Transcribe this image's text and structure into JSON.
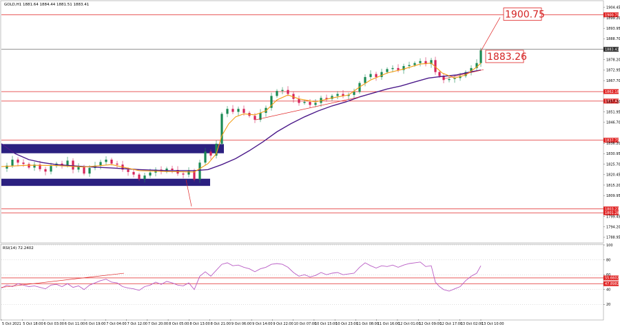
{
  "header": {
    "symbol_info": "GOLD,H1  1881.64 1884.44 1881.51 1883.41"
  },
  "indicator": {
    "label": "RSI(14) 72.2402"
  },
  "colors": {
    "bull": "#1a8a54",
    "bear": "#d6245a",
    "ema_fast": "#f39c12",
    "ema_slow": "#4b1a8a",
    "level_line": "#e02424",
    "box_fill": "#2b2080",
    "rsi_line": "#b85bc4",
    "price_tag_bg": "#2c2c2c"
  },
  "chart_data": [
    {
      "type": "candlestick",
      "title": "",
      "y_ticks": [
        "1904.45",
        "1899.20",
        "1893.95",
        "1888.70",
        "1878.20",
        "1872.95",
        "1867.70",
        "1857.20",
        "1851.95",
        "1846.70",
        "1836.20",
        "1830.95",
        "1825.70",
        "1820.45",
        "1815.20",
        "1809.95",
        "1799.45",
        "1794.20",
        "1788.95"
      ],
      "ylim": [
        1786.5,
        1907.5
      ],
      "x_ticks": [
        "5 Oct 2021",
        "5 Oct 18:00",
        "6 Oct 03:00",
        "6 Oct 11:00",
        "6 Oct 19:00",
        "7 Oct 04:00",
        "7 Oct 12:00",
        "7 Oct 20:00",
        "8 Oct 05:00",
        "8 Oct 13:00",
        "8 Oct 21:00",
        "9 Oct 06:00",
        "9 Oct 14:00",
        "9 Oct 22:00",
        "10 Oct 07:00",
        "10 Oct 15:00",
        "10 Oct 23:00",
        "11 Oct 08:00",
        "11 Oct 16:00",
        "12 Oct 01:00",
        "12 Oct 09:00",
        "12 Oct 17:00",
        "13 Oct 02:00",
        "13 Oct 10:00"
      ],
      "horizontal_levels": [
        {
          "value": 1900.75,
          "label": "1900.75"
        },
        {
          "value": 1862.18,
          "label": "1862.18"
        },
        {
          "value": 1857.42,
          "label": "1857.42"
        },
        {
          "value": 1837.75,
          "label": "1837.75"
        },
        {
          "value": 1803.23,
          "label": "1803.23"
        },
        {
          "value": 1801.28,
          "label": "1801.28"
        }
      ],
      "current_price": {
        "value": 1883.41,
        "label": "1883.41"
      },
      "callouts": [
        "1900.75",
        "1883.26"
      ],
      "zones": [
        [
          1831.2,
          1835.8
        ],
        [
          1814.8,
          1818.4
        ]
      ],
      "close_path": [
        [
          0,
          1823.5
        ],
        [
          8,
          1825.0
        ],
        [
          16,
          1828.0
        ],
        [
          24,
          1826.5
        ],
        [
          32,
          1825.8
        ],
        [
          40,
          1824.0
        ],
        [
          48,
          1825.5
        ],
        [
          56,
          1823.2
        ],
        [
          64,
          1822.0
        ],
        [
          72,
          1824.8
        ],
        [
          80,
          1826.0
        ],
        [
          88,
          1825.2
        ],
        [
          96,
          1827.5
        ],
        [
          104,
          1823.0
        ],
        [
          112,
          1824.5
        ],
        [
          120,
          1821.0
        ],
        [
          128,
          1823.8
        ],
        [
          136,
          1825.0
        ],
        [
          144,
          1826.8
        ],
        [
          152,
          1828.0
        ],
        [
          160,
          1826.0
        ],
        [
          168,
          1825.5
        ],
        [
          176,
          1823.0
        ],
        [
          184,
          1821.8
        ],
        [
          192,
          1820.5
        ],
        [
          200,
          1818.2
        ],
        [
          208,
          1820.0
        ],
        [
          216,
          1821.5
        ],
        [
          224,
          1823.0
        ],
        [
          232,
          1822.0
        ],
        [
          240,
          1823.5
        ],
        [
          248,
          1822.8
        ],
        [
          256,
          1821.0
        ],
        [
          264,
          1820.5
        ],
        [
          272,
          1822.5
        ],
        [
          280,
          1818.0
        ],
        [
          288,
          1826.5
        ],
        [
          296,
          1832.0
        ],
        [
          304,
          1830.0
        ],
        [
          312,
          1836.0
        ],
        [
          320,
          1851.0
        ],
        [
          328,
          1853.5
        ],
        [
          336,
          1852.0
        ],
        [
          344,
          1853.5
        ],
        [
          352,
          1851.5
        ],
        [
          360,
          1850.0
        ],
        [
          368,
          1848.0
        ],
        [
          376,
          1851.5
        ],
        [
          384,
          1854.0
        ],
        [
          392,
          1860.0
        ],
        [
          400,
          1862.5
        ],
        [
          408,
          1863.0
        ],
        [
          416,
          1861.0
        ],
        [
          424,
          1858.5
        ],
        [
          432,
          1856.5
        ],
        [
          440,
          1857.0
        ],
        [
          448,
          1855.5
        ],
        [
          456,
          1856.5
        ],
        [
          464,
          1859.0
        ],
        [
          472,
          1858.5
        ],
        [
          480,
          1860.0
        ],
        [
          488,
          1861.0
        ],
        [
          496,
          1860.0
        ],
        [
          504,
          1860.5
        ],
        [
          512,
          1862.0
        ],
        [
          520,
          1866.5
        ],
        [
          528,
          1869.5
        ],
        [
          536,
          1871.0
        ],
        [
          544,
          1869.5
        ],
        [
          552,
          1872.0
        ],
        [
          560,
          1873.5
        ],
        [
          568,
          1874.0
        ],
        [
          576,
          1873.0
        ],
        [
          584,
          1875.0
        ],
        [
          592,
          1875.5
        ],
        [
          600,
          1876.5
        ],
        [
          608,
          1877.5
        ],
        [
          616,
          1876.0
        ],
        [
          624,
          1878.0
        ],
        [
          630,
          1872.0
        ],
        [
          636,
          1870.0
        ],
        [
          642,
          1868.0
        ],
        [
          650,
          1868.5
        ],
        [
          658,
          1869.0
        ],
        [
          666,
          1870.0
        ],
        [
          674,
          1872.0
        ],
        [
          682,
          1874.0
        ],
        [
          690,
          1876.5
        ],
        [
          696,
          1883.0
        ]
      ],
      "ema_fast_path": [
        [
          0,
          1824.5
        ],
        [
          40,
          1825.2
        ],
        [
          80,
          1825.0
        ],
        [
          120,
          1824.3
        ],
        [
          160,
          1825.5
        ],
        [
          200,
          1822.5
        ],
        [
          240,
          1822.0
        ],
        [
          280,
          1821.8
        ],
        [
          300,
          1826.0
        ],
        [
          312,
          1831.0
        ],
        [
          320,
          1840.0
        ],
        [
          330,
          1846.0
        ],
        [
          340,
          1849.5
        ],
        [
          352,
          1851.0
        ],
        [
          368,
          1850.5
        ],
        [
          384,
          1852.5
        ],
        [
          400,
          1858.0
        ],
        [
          416,
          1860.5
        ],
        [
          432,
          1858.5
        ],
        [
          456,
          1857.0
        ],
        [
          480,
          1859.0
        ],
        [
          504,
          1860.5
        ],
        [
          520,
          1864.5
        ],
        [
          536,
          1868.0
        ],
        [
          560,
          1871.5
        ],
        [
          584,
          1873.5
        ],
        [
          608,
          1876.0
        ],
        [
          624,
          1876.5
        ],
        [
          640,
          1871.5
        ],
        [
          658,
          1869.0
        ],
        [
          674,
          1870.5
        ],
        [
          690,
          1874.5
        ],
        [
          696,
          1876.5
        ]
      ],
      "ema_slow_path": [
        [
          0,
          1836.0
        ],
        [
          20,
          1831.0
        ],
        [
          40,
          1828.0
        ],
        [
          60,
          1826.5
        ],
        [
          80,
          1825.5
        ],
        [
          120,
          1824.5
        ],
        [
          160,
          1823.8
        ],
        [
          200,
          1823.0
        ],
        [
          240,
          1822.5
        ],
        [
          280,
          1822.5
        ],
        [
          300,
          1823.0
        ],
        [
          320,
          1825.5
        ],
        [
          340,
          1828.5
        ],
        [
          360,
          1832.5
        ],
        [
          380,
          1837.0
        ],
        [
          400,
          1842.0
        ],
        [
          420,
          1846.0
        ],
        [
          440,
          1849.5
        ],
        [
          460,
          1852.5
        ],
        [
          480,
          1855.0
        ],
        [
          500,
          1857.0
        ],
        [
          520,
          1859.5
        ],
        [
          540,
          1861.5
        ],
        [
          560,
          1863.5
        ],
        [
          580,
          1865.0
        ],
        [
          600,
          1867.0
        ],
        [
          620,
          1869.0
        ],
        [
          640,
          1869.8
        ],
        [
          660,
          1870.5
        ],
        [
          680,
          1872.0
        ],
        [
          696,
          1873.0
        ]
      ],
      "trend_lines": [
        [
          [
            369,
            1848.0
          ],
          [
            520,
            1859.5
          ]
        ],
        [
          [
            641,
            1868.5
          ],
          [
            700,
            1873.2
          ]
        ],
        [
          [
            276,
            1804.5
          ],
          [
            268,
            1818.0
          ]
        ],
        [
          [
            696,
            1882.5
          ],
          [
            724,
            1899.5
          ]
        ]
      ]
    },
    {
      "type": "line",
      "title": "",
      "series_name": "RSI(14)",
      "y_ticks": [
        "100",
        "80",
        "60",
        "40",
        "20"
      ],
      "ylim": [
        0,
        100
      ],
      "levels": [
        {
          "value": 55.6602,
          "label": "55.6602"
        },
        {
          "value": 47.8982,
          "label": "47.8982"
        }
      ],
      "trend_line": [
        [
          0,
          43
        ],
        [
          178,
          62
        ]
      ],
      "values": [
        [
          0,
          42
        ],
        [
          8,
          46
        ],
        [
          16,
          44
        ],
        [
          24,
          48
        ],
        [
          32,
          46
        ],
        [
          40,
          44
        ],
        [
          48,
          45
        ],
        [
          56,
          43
        ],
        [
          64,
          41
        ],
        [
          72,
          46
        ],
        [
          80,
          47
        ],
        [
          88,
          44
        ],
        [
          96,
          48
        ],
        [
          104,
          43
        ],
        [
          112,
          45
        ],
        [
          120,
          40
        ],
        [
          128,
          46
        ],
        [
          136,
          49
        ],
        [
          144,
          52
        ],
        [
          152,
          54
        ],
        [
          160,
          50
        ],
        [
          168,
          49
        ],
        [
          176,
          44
        ],
        [
          184,
          42
        ],
        [
          192,
          41
        ],
        [
          200,
          39
        ],
        [
          208,
          44
        ],
        [
          216,
          46
        ],
        [
          224,
          50
        ],
        [
          232,
          47
        ],
        [
          240,
          51
        ],
        [
          248,
          49
        ],
        [
          256,
          46
        ],
        [
          264,
          45
        ],
        [
          272,
          49
        ],
        [
          280,
          40
        ],
        [
          288,
          58
        ],
        [
          296,
          64
        ],
        [
          304,
          58
        ],
        [
          312,
          66
        ],
        [
          320,
          74
        ],
        [
          328,
          76
        ],
        [
          336,
          72
        ],
        [
          344,
          73
        ],
        [
          352,
          70
        ],
        [
          360,
          68
        ],
        [
          368,
          64
        ],
        [
          376,
          68
        ],
        [
          384,
          70
        ],
        [
          392,
          74
        ],
        [
          400,
          75
        ],
        [
          408,
          74
        ],
        [
          416,
          70
        ],
        [
          424,
          63
        ],
        [
          432,
          58
        ],
        [
          440,
          60
        ],
        [
          448,
          57
        ],
        [
          456,
          59
        ],
        [
          464,
          63
        ],
        [
          472,
          60
        ],
        [
          480,
          62
        ],
        [
          488,
          63
        ],
        [
          496,
          60
        ],
        [
          504,
          61
        ],
        [
          512,
          62
        ],
        [
          520,
          70
        ],
        [
          528,
          76
        ],
        [
          536,
          72
        ],
        [
          544,
          69
        ],
        [
          552,
          72
        ],
        [
          560,
          71
        ],
        [
          568,
          73
        ],
        [
          576,
          70
        ],
        [
          584,
          73
        ],
        [
          592,
          75
        ],
        [
          600,
          76
        ],
        [
          608,
          77
        ],
        [
          616,
          71
        ],
        [
          624,
          72
        ],
        [
          630,
          50
        ],
        [
          636,
          44
        ],
        [
          642,
          40
        ],
        [
          650,
          38
        ],
        [
          658,
          41
        ],
        [
          666,
          44
        ],
        [
          674,
          52
        ],
        [
          682,
          58
        ],
        [
          690,
          62
        ],
        [
          696,
          72
        ]
      ]
    }
  ]
}
